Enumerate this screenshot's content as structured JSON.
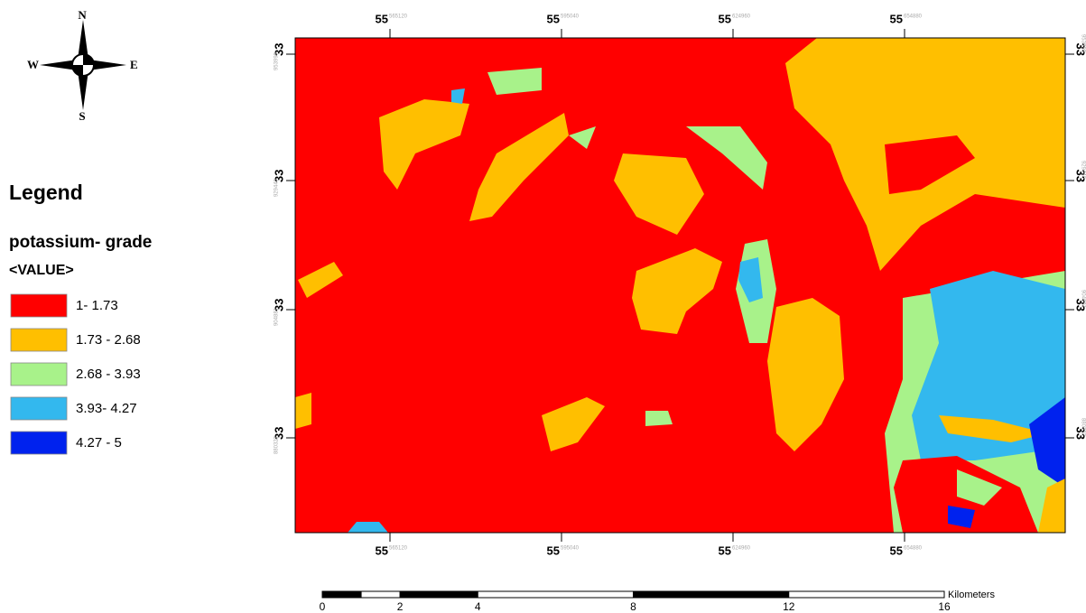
{
  "compass": {
    "north": "N",
    "south": "S",
    "east": "E",
    "west": "W"
  },
  "legend": {
    "title": "Legend",
    "layer": "potassium- grade",
    "field": "<VALUE>",
    "classes": [
      {
        "label": "1- 1.73",
        "color": "#ff0000"
      },
      {
        "label": "1.73 - 2.68",
        "color": "#ffbf00"
      },
      {
        "label": "2.68 - 3.93",
        "color": "#a8f28a"
      },
      {
        "label": "3.93- 4.27",
        "color": "#33b8ee"
      },
      {
        "label": "4.27 - 5",
        "color": "#0022ee"
      }
    ]
  },
  "top_ticks": [
    {
      "degrees": "55",
      "minutes": "565120"
    },
    {
      "degrees": "55",
      "minutes": "595040"
    },
    {
      "degrees": "55",
      "minutes": "624960"
    },
    {
      "degrees": "55",
      "minutes": "654880"
    }
  ],
  "bottom_ticks": [
    {
      "degrees": "55",
      "minutes": "565120"
    },
    {
      "degrees": "55",
      "minutes": "595040"
    },
    {
      "degrees": "55",
      "minutes": "624960"
    },
    {
      "degrees": "55",
      "minutes": "654880"
    }
  ],
  "left_ticks": [
    {
      "degrees": "33",
      "minutes": "953999"
    },
    {
      "degrees": "33",
      "minutes": "929440"
    },
    {
      "degrees": "33",
      "minutes": "904881"
    },
    {
      "degrees": "33",
      "minutes": "880322"
    }
  ],
  "right_ticks": [
    {
      "degrees": "33",
      "minutes": "953999"
    },
    {
      "degrees": "33",
      "minutes": "929440"
    },
    {
      "degrees": "33",
      "minutes": "904881"
    },
    {
      "degrees": "33",
      "minutes": "880322"
    }
  ],
  "scale_bar": {
    "labels": [
      0,
      2,
      4,
      8,
      12,
      16
    ],
    "unit": "Kilometers"
  }
}
